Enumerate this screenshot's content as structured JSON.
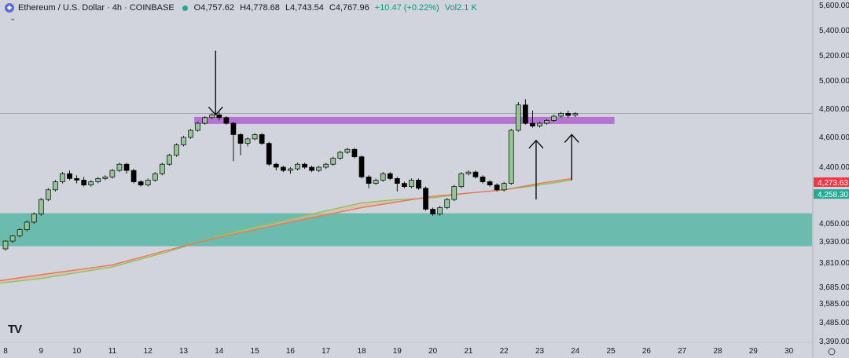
{
  "header": {
    "symbol": "Ethereum / U.S. Dollar · 4h · COINBASE",
    "open": "O4,757.62",
    "high": "H4,778.68",
    "low": "L4,743.54",
    "close": "C4,767.96",
    "change": "+10.47 (+0.22%)",
    "volume": "Vol2.1 K"
  },
  "logo": "TV",
  "colors": {
    "up": "#93c596",
    "down": "#000000",
    "resistance_zone": "#b36fd1",
    "support_zone": "#5fb9a8",
    "ma_fast": "#e8765a",
    "ma_slow": "#8fc15f",
    "price_badge_red": "#f23645",
    "price_badge_green": "#22ab94"
  },
  "chart_data": {
    "type": "candlestick",
    "timeframe": "4h",
    "ylim": [
      3390,
      5600
    ],
    "y_ticks": [
      "5,600.00",
      "5,400.00",
      "5,200.00",
      "5,000.00",
      "4,800.00",
      "4,600.00",
      "4,400.00",
      "4,050.00",
      "3,930.00",
      "3,810.00",
      "3,685.00",
      "3,585.00",
      "3,485.00",
      "3,390.00"
    ],
    "x_ticks": [
      "8",
      "9",
      "10",
      "11",
      "12",
      "13",
      "14",
      "15",
      "16",
      "17",
      "18",
      "19",
      "20",
      "21",
      "22",
      "23",
      "24",
      "25",
      "26",
      "27",
      "28",
      "29",
      "30"
    ],
    "price_labels": [
      {
        "text": "4,273.63",
        "value": 4273.63,
        "color": "#f23645"
      },
      {
        "text": "4,258.30",
        "value": 4258.3,
        "color": "#22ab94"
      }
    ],
    "zones": [
      {
        "name": "resistance",
        "from": 4695,
        "to": 4745,
        "start_day": 13.3,
        "end_day": 25.1
      },
      {
        "name": "support",
        "from": 3905,
        "to": 4115,
        "start_day": 7.5,
        "end_day": 31.5
      }
    ],
    "horizontal_line": 4770,
    "candles": [
      [
        8.0,
        3890,
        3935,
        3880,
        3940
      ],
      [
        8.2,
        3935,
        3970,
        3925,
        3975
      ],
      [
        8.4,
        3970,
        4010,
        3960,
        4020
      ],
      [
        8.6,
        4010,
        4060,
        4000,
        4070
      ],
      [
        8.8,
        4060,
        4110,
        4050,
        4120
      ],
      [
        9.0,
        4110,
        4200,
        4100,
        4210
      ],
      [
        9.2,
        4200,
        4260,
        4190,
        4270
      ],
      [
        9.4,
        4260,
        4310,
        4250,
        4320
      ],
      [
        9.6,
        4310,
        4360,
        4300,
        4370
      ],
      [
        9.8,
        4360,
        4330,
        4320,
        4380
      ],
      [
        10.0,
        4330,
        4320,
        4300,
        4350
      ],
      [
        10.2,
        4320,
        4290,
        4280,
        4340
      ],
      [
        10.4,
        4290,
        4310,
        4280,
        4320
      ],
      [
        10.6,
        4310,
        4330,
        4300,
        4340
      ],
      [
        10.8,
        4330,
        4340,
        4320,
        4350
      ],
      [
        11.0,
        4340,
        4380,
        4330,
        4390
      ],
      [
        11.2,
        4380,
        4420,
        4370,
        4430
      ],
      [
        11.4,
        4420,
        4380,
        4360,
        4430
      ],
      [
        11.6,
        4380,
        4310,
        4300,
        4390
      ],
      [
        11.8,
        4310,
        4290,
        4280,
        4320
      ],
      [
        12.0,
        4290,
        4320,
        4280,
        4330
      ],
      [
        12.2,
        4320,
        4360,
        4310,
        4370
      ],
      [
        12.4,
        4360,
        4420,
        4350,
        4430
      ],
      [
        12.6,
        4420,
        4480,
        4410,
        4490
      ],
      [
        12.8,
        4480,
        4550,
        4470,
        4560
      ],
      [
        13.0,
        4550,
        4600,
        4540,
        4610
      ],
      [
        13.2,
        4600,
        4650,
        4590,
        4660
      ],
      [
        13.4,
        4650,
        4700,
        4640,
        4710
      ],
      [
        13.6,
        4700,
        4740,
        4690,
        4750
      ],
      [
        13.8,
        4740,
        4760,
        4730,
        4770
      ],
      [
        14.0,
        4760,
        4740,
        4720,
        4790
      ],
      [
        14.2,
        4740,
        4700,
        4690,
        4750
      ],
      [
        14.4,
        4700,
        4620,
        4440,
        4710
      ],
      [
        14.6,
        4620,
        4560,
        4480,
        4630
      ],
      [
        14.8,
        4560,
        4590,
        4540,
        4600
      ],
      [
        15.0,
        4590,
        4620,
        4580,
        4630
      ],
      [
        15.2,
        4620,
        4560,
        4550,
        4630
      ],
      [
        15.4,
        4560,
        4420,
        4410,
        4570
      ],
      [
        15.6,
        4420,
        4400,
        4380,
        4430
      ],
      [
        15.8,
        4400,
        4380,
        4370,
        4410
      ],
      [
        16.0,
        4380,
        4390,
        4360,
        4400
      ],
      [
        16.2,
        4390,
        4420,
        4380,
        4430
      ],
      [
        16.4,
        4420,
        4400,
        4390,
        4430
      ],
      [
        16.6,
        4400,
        4380,
        4370,
        4410
      ],
      [
        16.8,
        4380,
        4400,
        4370,
        4410
      ],
      [
        17.0,
        4400,
        4420,
        4390,
        4430
      ],
      [
        17.2,
        4420,
        4460,
        4410,
        4470
      ],
      [
        17.4,
        4460,
        4500,
        4450,
        4510
      ],
      [
        17.6,
        4500,
        4520,
        4490,
        4530
      ],
      [
        17.8,
        4520,
        4470,
        4460,
        4530
      ],
      [
        18.0,
        4470,
        4340,
        4330,
        4480
      ],
      [
        18.2,
        4340,
        4300,
        4270,
        4350
      ],
      [
        18.4,
        4300,
        4320,
        4290,
        4330
      ],
      [
        18.6,
        4320,
        4360,
        4310,
        4370
      ],
      [
        18.8,
        4360,
        4330,
        4320,
        4370
      ],
      [
        19.0,
        4330,
        4300,
        4250,
        4340
      ],
      [
        19.2,
        4300,
        4280,
        4270,
        4310
      ],
      [
        19.4,
        4280,
        4320,
        4270,
        4330
      ],
      [
        19.6,
        4320,
        4270,
        4260,
        4330
      ],
      [
        19.8,
        4270,
        4140,
        4130,
        4280
      ],
      [
        20.0,
        4140,
        4110,
        4100,
        4150
      ],
      [
        20.2,
        4110,
        4150,
        4100,
        4160
      ],
      [
        20.4,
        4150,
        4200,
        4140,
        4210
      ],
      [
        20.6,
        4200,
        4280,
        4190,
        4290
      ],
      [
        20.8,
        4280,
        4360,
        4270,
        4370
      ],
      [
        21.0,
        4360,
        4370,
        4350,
        4380
      ],
      [
        21.2,
        4370,
        4340,
        4330,
        4380
      ],
      [
        21.4,
        4340,
        4310,
        4300,
        4350
      ],
      [
        21.6,
        4310,
        4290,
        4280,
        4320
      ],
      [
        21.8,
        4290,
        4260,
        4250,
        4300
      ],
      [
        22.0,
        4260,
        4300,
        4250,
        4310
      ],
      [
        22.2,
        4300,
        4650,
        4290,
        4660
      ],
      [
        22.4,
        4650,
        4830,
        4640,
        4850
      ],
      [
        22.6,
        4830,
        4700,
        4690,
        4870
      ],
      [
        22.8,
        4700,
        4680,
        4670,
        4790
      ],
      [
        23.0,
        4680,
        4700,
        4670,
        4710
      ],
      [
        23.2,
        4700,
        4720,
        4690,
        4730
      ],
      [
        23.4,
        4720,
        4750,
        4710,
        4760
      ],
      [
        23.6,
        4750,
        4770,
        4740,
        4780
      ],
      [
        23.8,
        4770,
        4755,
        4740,
        4790
      ],
      [
        24.0,
        4757.62,
        4767.96,
        4743.54,
        4778.68
      ]
    ],
    "ma_fast": [
      [
        7.5,
        3710
      ],
      [
        9,
        3750
      ],
      [
        11,
        3800
      ],
      [
        12.5,
        3880
      ],
      [
        14,
        3960
      ],
      [
        16,
        4060
      ],
      [
        18,
        4150
      ],
      [
        20,
        4220
      ],
      [
        21,
        4240
      ],
      [
        22,
        4260
      ],
      [
        23,
        4300
      ],
      [
        23.9,
        4330
      ]
    ],
    "ma_slow": [
      [
        7.5,
        3700
      ],
      [
        9,
        3730
      ],
      [
        11,
        3790
      ],
      [
        12.5,
        3870
      ],
      [
        14,
        3970
      ],
      [
        16,
        4080
      ],
      [
        18,
        4180
      ],
      [
        19,
        4200
      ],
      [
        20,
        4210
      ],
      [
        21,
        4240
      ],
      [
        22,
        4260
      ],
      [
        23,
        4290
      ],
      [
        23.9,
        4320
      ]
    ],
    "annotations": [
      {
        "type": "arrow-down",
        "day": 13.9,
        "from": 5240,
        "to": 4760
      },
      {
        "type": "arrow-up",
        "day": 22.9,
        "from": 4200,
        "to": 4580
      },
      {
        "type": "arrow-up",
        "day": 23.9,
        "from": 4320,
        "to": 4620
      }
    ]
  }
}
